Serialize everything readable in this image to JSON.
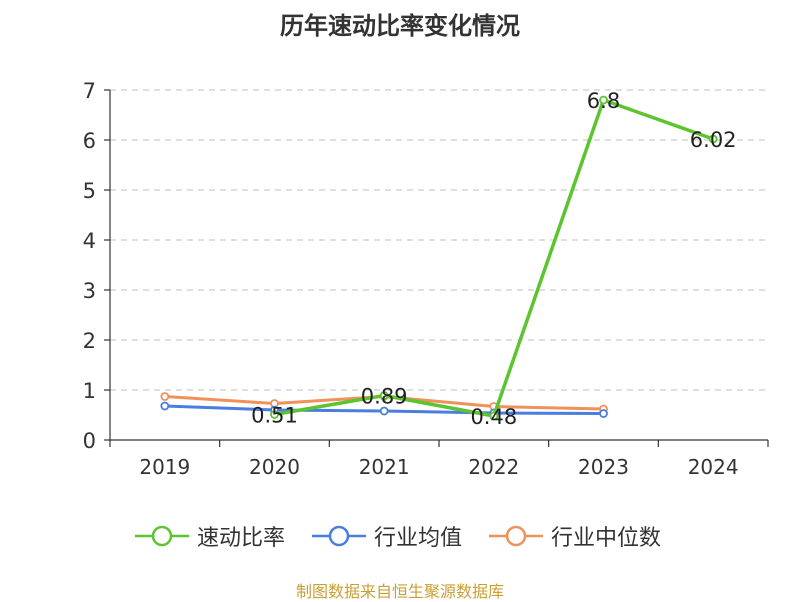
{
  "title": "历年速动比率变化情况",
  "source": "制图数据来自恒生聚源数据库",
  "chart_data": {
    "type": "line",
    "title": "历年速动比率变化情况",
    "categories": [
      "2019",
      "2020",
      "2021",
      "2022",
      "2023",
      "2024"
    ],
    "ylim": [
      0,
      7
    ],
    "yticks": [
      0,
      1,
      2,
      3,
      4,
      5,
      6,
      7
    ],
    "grid": true,
    "legend_position": "bottom",
    "series": [
      {
        "name": "速动比率",
        "color": "#5cc42f",
        "values": [
          null,
          0.51,
          0.89,
          0.48,
          6.8,
          6.02
        ],
        "labels": [
          "",
          "0.51",
          "0.89",
          "0.48",
          "6.8",
          "6.02"
        ]
      },
      {
        "name": "行业均值",
        "color": "#4a7de0",
        "values": [
          0.68,
          0.6,
          0.58,
          0.54,
          0.53,
          null
        ]
      },
      {
        "name": "行业中位数",
        "color": "#f0915a",
        "values": [
          0.87,
          0.73,
          0.87,
          0.67,
          0.62,
          null
        ]
      }
    ]
  }
}
